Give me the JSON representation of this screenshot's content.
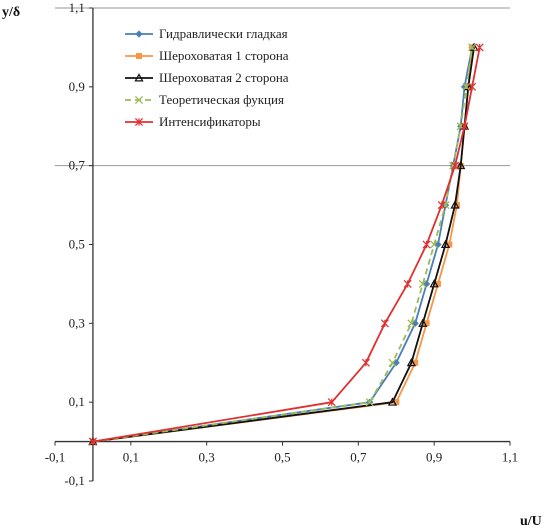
{
  "chart_data": {
    "type": "line",
    "title": "",
    "xlabel": "u/U",
    "ylabel": "y/δ",
    "xlim": [
      -0.1,
      1.1
    ],
    "ylim": [
      -0.1,
      1.1
    ],
    "x_ticks": [
      "-0,1",
      "0,1",
      "0,3",
      "0,5",
      "0,7",
      "0,9",
      "1,1"
    ],
    "y_ticks": [
      "-0,1",
      "0,1",
      "0,3",
      "0,5",
      "0,7",
      "0,9",
      "1,1"
    ],
    "gridlines_y": [
      0.7,
      1.1
    ],
    "legend_position": "top-left",
    "series": [
      {
        "name": "Гидравлически гладкая",
        "color": "#4a7ebb",
        "marker": "diamond",
        "dash": "solid",
        "points": [
          [
            0,
            0
          ],
          [
            0.73,
            0.1
          ],
          [
            0.8,
            0.2
          ],
          [
            0.85,
            0.3
          ],
          [
            0.88,
            0.4
          ],
          [
            0.91,
            0.5
          ],
          [
            0.93,
            0.6
          ],
          [
            0.95,
            0.7
          ],
          [
            0.97,
            0.8
          ],
          [
            0.98,
            0.9
          ],
          [
            1.0,
            1.0
          ]
        ]
      },
      {
        "name": "Шероховатая 1 сторона",
        "color": "#f79646",
        "marker": "square",
        "dash": "solid",
        "points": [
          [
            0,
            0
          ],
          [
            0.8,
            0.1
          ],
          [
            0.85,
            0.2
          ],
          [
            0.88,
            0.3
          ],
          [
            0.91,
            0.4
          ],
          [
            0.94,
            0.5
          ],
          [
            0.96,
            0.6
          ],
          [
            0.97,
            0.7
          ],
          [
            0.98,
            0.8
          ],
          [
            0.99,
            0.9
          ],
          [
            1.0,
            1.0
          ]
        ]
      },
      {
        "name": "Шероховатая 2 сторона",
        "color": "#111111",
        "marker": "triangle",
        "dash": "solid",
        "points": [
          [
            0,
            0
          ],
          [
            0.79,
            0.1
          ],
          [
            0.84,
            0.2
          ],
          [
            0.87,
            0.3
          ],
          [
            0.9,
            0.4
          ],
          [
            0.93,
            0.5
          ],
          [
            0.955,
            0.6
          ],
          [
            0.97,
            0.7
          ],
          [
            0.98,
            0.8
          ],
          [
            0.99,
            0.9
          ],
          [
            1.005,
            1.0
          ]
        ]
      },
      {
        "name": "Теоретическая фукция",
        "color": "#9bbb59",
        "marker": "x",
        "dash": "dashed",
        "points": [
          [
            0,
            0
          ],
          [
            0.73,
            0.1
          ],
          [
            0.79,
            0.2
          ],
          [
            0.84,
            0.3
          ],
          [
            0.87,
            0.4
          ],
          [
            0.9,
            0.5
          ],
          [
            0.93,
            0.6
          ],
          [
            0.95,
            0.7
          ],
          [
            0.97,
            0.8
          ],
          [
            0.985,
            0.9
          ],
          [
            1.0,
            1.0
          ]
        ]
      },
      {
        "name": "Интенсификаторы",
        "color": "#e03030",
        "marker": "star",
        "dash": "solid",
        "points": [
          [
            0,
            0
          ],
          [
            0.63,
            0.1
          ],
          [
            0.72,
            0.2
          ],
          [
            0.77,
            0.3
          ],
          [
            0.83,
            0.4
          ],
          [
            0.88,
            0.5
          ],
          [
            0.92,
            0.6
          ],
          [
            0.955,
            0.7
          ],
          [
            0.98,
            0.8
          ],
          [
            1.0,
            0.9
          ],
          [
            1.02,
            1.0
          ]
        ]
      }
    ]
  }
}
